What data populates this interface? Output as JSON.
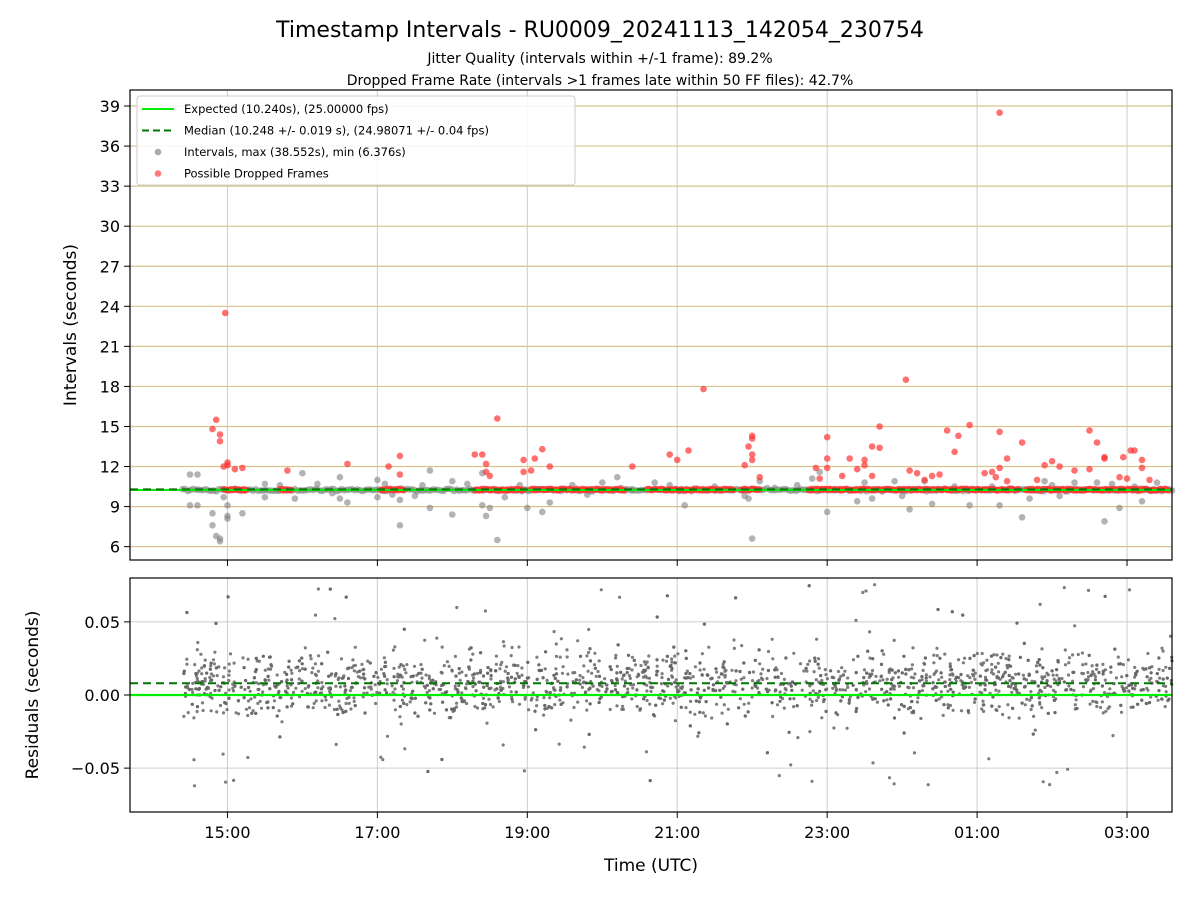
{
  "chart_data": [
    {
      "type": "scatter",
      "panel": "intervals",
      "title": "Timestamp Intervals - RU0009_20241113_142054_230754",
      "subtitle_1": "Jitter Quality (intervals within +/-1 frame): 89.2%",
      "subtitle_2": "Dropped Frame Rate (intervals >1 frames late within 50 FF files): 42.7%",
      "ylabel": "Intervals (seconds)",
      "xlim_hours": [
        13.7,
        27.6
      ],
      "ylim": [
        5,
        40.2
      ],
      "y_ticks": [
        6,
        9,
        12,
        15,
        18,
        21,
        24,
        27,
        30,
        33,
        36,
        39
      ],
      "y_tick_labels": [
        "6",
        "9",
        "12",
        "15",
        "18",
        "21",
        "24",
        "27",
        "30",
        "33",
        "36",
        "39"
      ],
      "grid": "horizontal tan lines at y ticks, vertical grey lines at x ticks",
      "legend_position": "top-left",
      "legend": [
        {
          "label": "Expected (10.240s), (25.00000 fps)",
          "style": "line",
          "color": "#00ee00"
        },
        {
          "label": "Median (10.248 +/- 0.019 s), (24.98071 +/- 0.04 fps)",
          "style": "dashed",
          "color": "#007700"
        },
        {
          "label": "Intervals, max (38.552s), min (6.376s)",
          "style": "marker",
          "color": "#808080"
        },
        {
          "label": "Possible Dropped Frames",
          "style": "marker",
          "color": "#ff3333"
        }
      ],
      "expected_value": 10.24,
      "median_value": 10.248,
      "data_start_hours": 14.4,
      "data_end_hours": 27.6,
      "gray_outliers": [
        [
          14.5,
          11.4
        ],
        [
          14.5,
          9.1
        ],
        [
          14.6,
          11.4
        ],
        [
          14.6,
          9.1
        ],
        [
          14.8,
          8.5
        ],
        [
          14.8,
          7.6
        ],
        [
          14.85,
          6.8
        ],
        [
          14.9,
          6.6
        ],
        [
          14.9,
          6.4
        ],
        [
          14.95,
          9.7
        ],
        [
          15.0,
          8.3
        ],
        [
          15.0,
          8.1
        ],
        [
          15.0,
          9.1
        ],
        [
          15.2,
          8.5
        ],
        [
          15.5,
          10.7
        ],
        [
          15.5,
          9.7
        ],
        [
          15.7,
          10.6
        ],
        [
          15.9,
          9.6
        ],
        [
          16.0,
          11.5
        ],
        [
          16.2,
          10.7
        ],
        [
          16.4,
          10.0
        ],
        [
          16.5,
          11.2
        ],
        [
          16.5,
          9.6
        ],
        [
          16.6,
          9.3
        ],
        [
          17.0,
          11.0
        ],
        [
          17.0,
          9.7
        ],
        [
          17.1,
          10.7
        ],
        [
          17.2,
          9.9
        ],
        [
          17.3,
          9.5
        ],
        [
          17.3,
          7.6
        ],
        [
          17.5,
          9.8
        ],
        [
          17.6,
          10.6
        ],
        [
          17.7,
          11.7
        ],
        [
          17.7,
          8.9
        ],
        [
          18.0,
          8.4
        ],
        [
          18.0,
          10.9
        ],
        [
          18.2,
          10.7
        ],
        [
          18.4,
          11.5
        ],
        [
          18.4,
          9.1
        ],
        [
          18.45,
          8.3
        ],
        [
          18.5,
          8.9
        ],
        [
          18.6,
          6.5
        ],
        [
          18.7,
          9.7
        ],
        [
          18.9,
          10.6
        ],
        [
          19.0,
          10.2
        ],
        [
          19.0,
          8.9
        ],
        [
          19.2,
          8.6
        ],
        [
          19.3,
          9.3
        ],
        [
          19.6,
          10.6
        ],
        [
          19.8,
          9.9
        ],
        [
          20.0,
          10.8
        ],
        [
          20.2,
          11.2
        ],
        [
          20.4,
          10.3
        ],
        [
          20.7,
          10.8
        ],
        [
          20.9,
          10.6
        ],
        [
          21.1,
          9.1
        ],
        [
          21.5,
          10.5
        ],
        [
          21.9,
          9.8
        ],
        [
          21.95,
          9.6
        ],
        [
          22.0,
          6.6
        ],
        [
          22.1,
          10.9
        ],
        [
          22.3,
          10.4
        ],
        [
          22.6,
          10.6
        ],
        [
          22.8,
          11.1
        ],
        [
          22.9,
          11.6
        ],
        [
          23.0,
          8.6
        ],
        [
          23.3,
          10.2
        ],
        [
          23.4,
          9.4
        ],
        [
          23.5,
          10.8
        ],
        [
          23.6,
          9.6
        ],
        [
          23.9,
          10.9
        ],
        [
          24.0,
          9.8
        ],
        [
          24.1,
          8.8
        ],
        [
          24.3,
          10.9
        ],
        [
          24.4,
          9.2
        ],
        [
          24.7,
          10.5
        ],
        [
          24.9,
          9.1
        ],
        [
          25.2,
          10.5
        ],
        [
          25.3,
          9.1
        ],
        [
          25.5,
          10.2
        ],
        [
          25.6,
          8.2
        ],
        [
          25.7,
          9.6
        ],
        [
          25.9,
          10.9
        ],
        [
          26.0,
          10.6
        ],
        [
          26.1,
          9.8
        ],
        [
          26.3,
          10.8
        ],
        [
          26.6,
          10.8
        ],
        [
          26.7,
          7.9
        ],
        [
          26.8,
          10.7
        ],
        [
          26.9,
          8.9
        ],
        [
          27.1,
          10.5
        ],
        [
          27.2,
          9.4
        ],
        [
          27.4,
          10.8
        ]
      ],
      "red_dropped": [
        [
          14.8,
          14.8
        ],
        [
          14.85,
          15.5
        ],
        [
          14.9,
          14.4
        ],
        [
          14.9,
          13.9
        ],
        [
          14.95,
          12.0
        ],
        [
          15.0,
          12.3
        ],
        [
          15.0,
          12.1
        ],
        [
          14.97,
          23.5
        ],
        [
          15.1,
          11.8
        ],
        [
          15.2,
          11.9
        ],
        [
          15.8,
          11.7
        ],
        [
          16.6,
          12.2
        ],
        [
          17.15,
          12.0
        ],
        [
          17.3,
          12.8
        ],
        [
          17.3,
          11.4
        ],
        [
          18.3,
          12.9
        ],
        [
          18.4,
          12.9
        ],
        [
          18.45,
          12.2
        ],
        [
          18.45,
          11.6
        ],
        [
          18.5,
          11.3
        ],
        [
          18.6,
          15.6
        ],
        [
          18.95,
          12.5
        ],
        [
          18.95,
          11.6
        ],
        [
          19.05,
          11.7
        ],
        [
          19.1,
          12.6
        ],
        [
          19.2,
          13.3
        ],
        [
          19.3,
          12.0
        ],
        [
          20.4,
          12.0
        ],
        [
          20.9,
          12.9
        ],
        [
          21.0,
          12.5
        ],
        [
          21.15,
          13.2
        ],
        [
          21.35,
          17.8
        ],
        [
          21.9,
          12.1
        ],
        [
          21.95,
          13.5
        ],
        [
          22.0,
          14.3
        ],
        [
          22.0,
          14.1
        ],
        [
          22.0,
          12.9
        ],
        [
          22.0,
          12.5
        ],
        [
          22.1,
          11.2
        ],
        [
          22.85,
          11.9
        ],
        [
          22.9,
          11.1
        ],
        [
          23.0,
          14.2
        ],
        [
          23.0,
          12.6
        ],
        [
          23.0,
          11.9
        ],
        [
          23.2,
          11.3
        ],
        [
          23.3,
          12.6
        ],
        [
          23.4,
          11.8
        ],
        [
          23.5,
          12.5
        ],
        [
          23.5,
          12.1
        ],
        [
          23.6,
          11.3
        ],
        [
          23.6,
          13.5
        ],
        [
          23.7,
          13.4
        ],
        [
          23.7,
          15.0
        ],
        [
          24.05,
          18.5
        ],
        [
          24.1,
          11.7
        ],
        [
          24.2,
          11.5
        ],
        [
          24.3,
          11.0
        ],
        [
          24.4,
          11.3
        ],
        [
          24.5,
          11.4
        ],
        [
          24.6,
          14.7
        ],
        [
          24.7,
          13.1
        ],
        [
          24.75,
          14.3
        ],
        [
          24.9,
          15.1
        ],
        [
          25.1,
          11.5
        ],
        [
          25.2,
          11.6
        ],
        [
          25.25,
          11.2
        ],
        [
          25.3,
          11.9
        ],
        [
          25.4,
          12.6
        ],
        [
          25.3,
          14.6
        ],
        [
          25.3,
          38.5
        ],
        [
          25.4,
          10.9
        ],
        [
          25.6,
          13.8
        ],
        [
          25.8,
          11.0
        ],
        [
          25.9,
          12.1
        ],
        [
          26.0,
          12.4
        ],
        [
          26.1,
          12.0
        ],
        [
          26.3,
          11.7
        ],
        [
          26.5,
          11.8
        ],
        [
          26.5,
          14.7
        ],
        [
          26.6,
          13.8
        ],
        [
          26.7,
          12.7
        ],
        [
          26.7,
          12.6
        ],
        [
          26.9,
          11.2
        ],
        [
          26.95,
          12.7
        ],
        [
          27.0,
          11.1
        ],
        [
          27.05,
          13.2
        ],
        [
          27.1,
          13.2
        ],
        [
          27.2,
          11.9
        ],
        [
          27.2,
          12.5
        ],
        [
          27.3,
          11.0
        ]
      ]
    },
    {
      "type": "scatter",
      "panel": "residuals",
      "xlabel": "Time (UTC)",
      "ylabel": "Residuals (seconds)",
      "xlim_hours": [
        13.7,
        27.6
      ],
      "ylim": [
        -0.08,
        0.08
      ],
      "x_ticks_hours": [
        15,
        17,
        19,
        21,
        23,
        25,
        27
      ],
      "x_tick_labels": [
        "15:00",
        "17:00",
        "19:00",
        "21:00",
        "23:00",
        "01:00",
        "03:00"
      ],
      "y_ticks": [
        -0.05,
        0.0,
        0.05
      ],
      "y_tick_labels": [
        "−0.05",
        "0.00",
        "0.05"
      ],
      "expected_line": 0.0,
      "median_line": 0.008,
      "grid": "grey lines at x and y ticks",
      "residual_spread": "points cluster around 0.008 s, band roughly -0.02 to 0.03 s, with sparse outliers reaching about ±0.08 s"
    }
  ],
  "colors": {
    "expected": "#00ee00",
    "median": "#007700",
    "intervals": "#808080",
    "dropped": "#ff3333",
    "grid_top": "#d9c38a",
    "grid_gray": "#cccccc"
  }
}
